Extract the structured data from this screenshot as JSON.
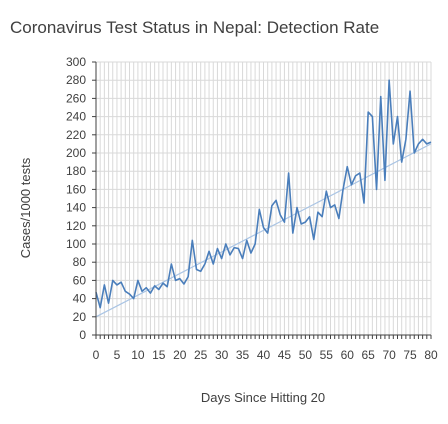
{
  "chart_data": {
    "type": "line",
    "title": "Coronavirus Test Status in Nepal: Detection Rate",
    "xlabel": "Days Since Hitting 20",
    "ylabel": "Cases/1000 tests",
    "xlim": [
      0,
      80
    ],
    "ylim": [
      0,
      300
    ],
    "x_ticks": [
      0,
      5,
      10,
      15,
      20,
      25,
      30,
      35,
      40,
      45,
      50,
      55,
      60,
      65,
      70,
      75,
      80
    ],
    "y_ticks": [
      0,
      20,
      40,
      60,
      80,
      100,
      120,
      140,
      160,
      180,
      200,
      220,
      240,
      260,
      280,
      300
    ],
    "grid": true,
    "legend": "none",
    "colors": {
      "series": "#4a7ebb",
      "trendline": "#a9c4e4",
      "grid": "#d9d9d9",
      "axis": "#404040"
    },
    "series": [
      {
        "x": [
          0,
          1,
          2,
          3,
          4,
          5,
          6,
          7,
          8,
          9,
          10,
          11,
          12,
          13,
          14,
          15,
          16,
          17,
          18,
          19,
          20,
          21,
          22,
          23,
          24,
          25,
          26,
          27,
          28,
          29,
          30,
          31,
          32,
          33,
          34,
          35,
          36,
          37,
          38,
          39,
          40,
          41,
          42,
          43,
          44,
          45,
          46,
          47,
          48,
          49,
          50,
          51,
          52,
          53,
          54,
          55,
          56,
          57,
          58,
          59,
          60,
          61,
          62,
          63,
          64,
          65,
          66,
          67,
          68,
          69,
          70,
          71,
          72,
          73,
          74,
          75,
          76,
          77,
          78,
          79,
          80
        ],
        "y": [
          47,
          30,
          55,
          35,
          60,
          55,
          58,
          48,
          45,
          40,
          60,
          48,
          52,
          46,
          54,
          50,
          57,
          53,
          78,
          60,
          62,
          56,
          64,
          104,
          72,
          70,
          78,
          92,
          78,
          95,
          84,
          100,
          88,
          96,
          95,
          84,
          104,
          90,
          100,
          138,
          118,
          112,
          142,
          148,
          132,
          124,
          178,
          112,
          140,
          122,
          124,
          130,
          105,
          135,
          130,
          158,
          140,
          143,
          128,
          160,
          185,
          165,
          175,
          178,
          145,
          245,
          240,
          160,
          262,
          170,
          280,
          210,
          240,
          190,
          215,
          268,
          200,
          210,
          215,
          210,
          212
        ]
      }
    ],
    "trendline": {
      "x": [
        0,
        80
      ],
      "y": [
        20,
        210
      ]
    }
  }
}
